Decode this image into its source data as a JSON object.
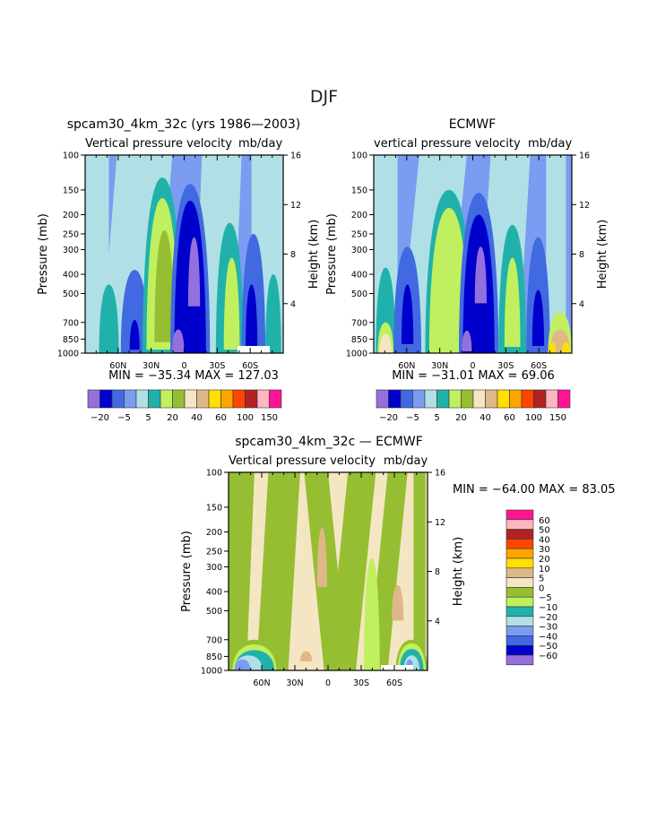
{
  "figure_title": "DJF",
  "palette": [
    "#9370db",
    "#0000cd",
    "#4169e1",
    "#7b9cf0",
    "#b0e0e6",
    "#20b2aa",
    "#c0f060",
    "#96be32",
    "#f5e6c3",
    "#deb887",
    "#ffe000",
    "#ffa500",
    "#ff4500",
    "#b22222",
    "#ffb6c1",
    "#ff1493"
  ],
  "chart_data": [
    {
      "type": "heatmap",
      "subtype": "filled-contour latitude-pressure cross section",
      "title": "spcam30_4km_32c (yrs 1986—2003)",
      "subtitle_left": "Vertical pressure velocity",
      "subtitle_right": "mb/day",
      "ylabel": "Pressure (mb)",
      "y2label": "Height (km)",
      "yticks": [
        "100",
        "150",
        "200",
        "250",
        "300",
        "400",
        "500",
        "700",
        "850",
        "1000"
      ],
      "y2ticks": [
        "16",
        "12",
        "8",
        "4"
      ],
      "xticks": [
        "60N",
        "30N",
        "0",
        "30S",
        "60S"
      ],
      "ylim": [
        1000,
        100
      ],
      "xlim": [
        "90N",
        "90S"
      ],
      "stats": "MIN = −35.34   MAX = 127.03",
      "min": -35.34,
      "max": 127.03,
      "colorbar": {
        "orientation": "horizontal",
        "levels_shown": [
          "−20",
          "−5",
          "5",
          "20",
          "40",
          "60",
          "100",
          "150"
        ],
        "n_colors": 16
      }
    },
    {
      "type": "heatmap",
      "subtype": "filled-contour latitude-pressure cross section",
      "title": "ECMWF",
      "subtitle_left": "vertical pressure velocity",
      "subtitle_right": "mb/day",
      "ylabel": "Pressure (mb)",
      "y2label": "Height (km)",
      "yticks": [
        "100",
        "150",
        "200",
        "250",
        "300",
        "400",
        "500",
        "700",
        "850",
        "1000"
      ],
      "y2ticks": [
        "16",
        "12",
        "8",
        "4"
      ],
      "xticks": [
        "60N",
        "30N",
        "0",
        "30S",
        "60S"
      ],
      "ylim": [
        1000,
        100
      ],
      "xlim": [
        "90N",
        "90S"
      ],
      "stats": "MIN = −31.01   MAX =   69.06",
      "min": -31.01,
      "max": 69.06,
      "colorbar": {
        "orientation": "horizontal",
        "levels_shown": [
          "−20",
          "−5",
          "5",
          "20",
          "40",
          "60",
          "100",
          "150"
        ],
        "n_colors": 16
      }
    },
    {
      "type": "heatmap",
      "subtype": "filled-contour latitude-pressure cross section (difference)",
      "title": "spcam30_4km_32c — ECMWF",
      "subtitle_left": "Vertical pressure velocity",
      "subtitle_right": "mb/day",
      "ylabel": "Pressure (mb)",
      "y2label": "Height (km)",
      "yticks": [
        "100",
        "150",
        "200",
        "250",
        "300",
        "400",
        "500",
        "700",
        "850",
        "1000"
      ],
      "y2ticks": [
        "16",
        "12",
        "8",
        "4"
      ],
      "xticks": [
        "60N",
        "30N",
        "0",
        "30S",
        "60S"
      ],
      "ylim": [
        1000,
        100
      ],
      "xlim": [
        "90N",
        "90S"
      ],
      "stats": "MIN = −64.00   MAX =   83.05",
      "min": -64.0,
      "max": 83.05,
      "colorbar": {
        "orientation": "vertical",
        "levels_shown": [
          "60",
          "50",
          "40",
          "30",
          "20",
          "10",
          "5",
          "0",
          "−5",
          "−10",
          "−20",
          "−30",
          "−40",
          "−50",
          "−60"
        ],
        "n_colors": 16
      }
    }
  ]
}
